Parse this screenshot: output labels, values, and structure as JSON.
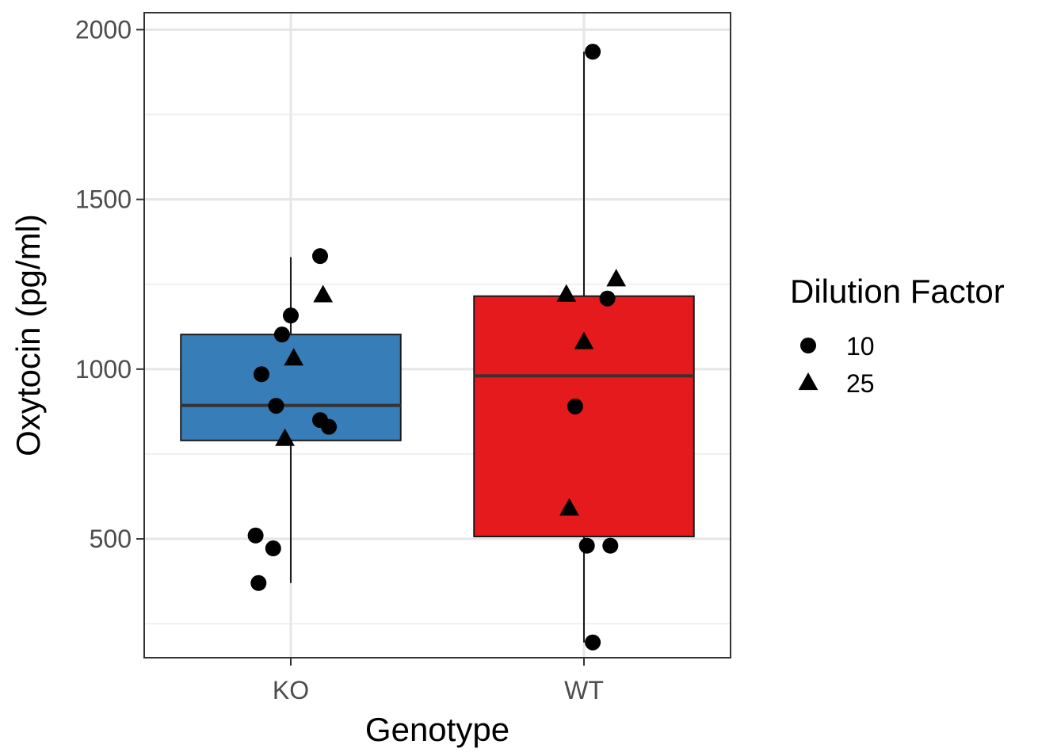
{
  "chart_data": {
    "type": "box",
    "xlabel": "Genotype",
    "ylabel": "Oxytocin (pg/ml)",
    "categories": [
      "KO",
      "WT"
    ],
    "ylim": [
      150,
      2050
    ],
    "yticks": [
      500,
      1000,
      1500,
      2000
    ],
    "ytick_labels": [
      "500",
      "1000",
      "1500",
      "2000"
    ],
    "grid": true,
    "legend": {
      "title": "Dilution Factor",
      "position": "right",
      "entries": [
        {
          "label": "10",
          "shape": "circle"
        },
        {
          "label": "25",
          "shape": "triangle"
        }
      ]
    },
    "boxes": [
      {
        "category": "KO",
        "color": "#377eb8",
        "lower_whisker": 370,
        "q1": 790,
        "median": 893,
        "q3": 1102,
        "upper_whisker": 1330
      },
      {
        "category": "WT",
        "color": "#e41a1c",
        "lower_whisker": 195,
        "q1": 507,
        "median": 980,
        "q3": 1215,
        "upper_whisker": 1935
      }
    ],
    "points": [
      {
        "category": "KO",
        "jitter": 0.1,
        "y": 1333,
        "dilution": "10"
      },
      {
        "category": "KO",
        "jitter": 0.11,
        "y": 1218,
        "dilution": "25"
      },
      {
        "category": "KO",
        "jitter": 0.0,
        "y": 1158,
        "dilution": "10"
      },
      {
        "category": "KO",
        "jitter": -0.03,
        "y": 1102,
        "dilution": "10"
      },
      {
        "category": "KO",
        "jitter": 0.01,
        "y": 1032,
        "dilution": "25"
      },
      {
        "category": "KO",
        "jitter": -0.1,
        "y": 985,
        "dilution": "10"
      },
      {
        "category": "KO",
        "jitter": -0.05,
        "y": 892,
        "dilution": "10"
      },
      {
        "category": "KO",
        "jitter": 0.1,
        "y": 850,
        "dilution": "10"
      },
      {
        "category": "KO",
        "jitter": 0.13,
        "y": 830,
        "dilution": "10"
      },
      {
        "category": "KO",
        "jitter": -0.02,
        "y": 795,
        "dilution": "25"
      },
      {
        "category": "KO",
        "jitter": -0.12,
        "y": 510,
        "dilution": "10"
      },
      {
        "category": "KO",
        "jitter": -0.06,
        "y": 472,
        "dilution": "10"
      },
      {
        "category": "KO",
        "jitter": -0.11,
        "y": 370,
        "dilution": "10"
      },
      {
        "category": "WT",
        "jitter": 0.03,
        "y": 1935,
        "dilution": "10"
      },
      {
        "category": "WT",
        "jitter": 0.11,
        "y": 1265,
        "dilution": "25"
      },
      {
        "category": "WT",
        "jitter": -0.06,
        "y": 1220,
        "dilution": "25"
      },
      {
        "category": "WT",
        "jitter": 0.08,
        "y": 1208,
        "dilution": "10"
      },
      {
        "category": "WT",
        "jitter": 0.0,
        "y": 1080,
        "dilution": "25"
      },
      {
        "category": "WT",
        "jitter": -0.03,
        "y": 890,
        "dilution": "10"
      },
      {
        "category": "WT",
        "jitter": -0.05,
        "y": 590,
        "dilution": "25"
      },
      {
        "category": "WT",
        "jitter": 0.01,
        "y": 480,
        "dilution": "10"
      },
      {
        "category": "WT",
        "jitter": 0.09,
        "y": 480,
        "dilution": "10"
      },
      {
        "category": "WT",
        "jitter": 0.03,
        "y": 195,
        "dilution": "10"
      }
    ]
  }
}
